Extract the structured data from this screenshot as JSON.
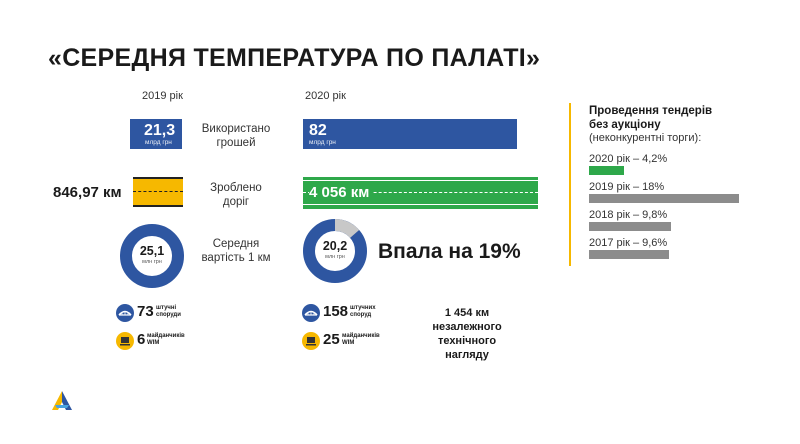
{
  "title": "«СЕРЕДНЯ ТЕМПЕРАТУРА ПО ПАЛАТІ»",
  "years": {
    "left": "2019 рік",
    "right": "2020 рік"
  },
  "money": {
    "label_line1": "Використано",
    "label_line2": "грошей",
    "left_value": "21,3",
    "left_unit": "млрд грн",
    "right_value": "82",
    "right_unit": "млрд грн"
  },
  "roads": {
    "label_line1": "Зроблено",
    "label_line2": "доріг",
    "left_value": "846,97 км",
    "right_value": "4 056 км"
  },
  "cost": {
    "label_line1": "Середня",
    "label_line2": "вартість 1 км",
    "left_value": "25,1",
    "left_unit": "млн грн",
    "right_value": "20,2",
    "right_unit": "млн грн",
    "drop_text": "Впала на 19%"
  },
  "structures": {
    "left_count": "73",
    "right_count": "158",
    "unit_line1": "штучні",
    "unit_line2": "споруди",
    "right_unit_line1": "штучних",
    "right_unit_line2": "споруд"
  },
  "wim": {
    "left_count": "6",
    "right_count": "25",
    "unit_line1": "майданчиків",
    "unit_line2": "WIM"
  },
  "supervision": {
    "line1": "1 454 км",
    "line2": "незалежного",
    "line3": "технічного",
    "line4": "нагляду"
  },
  "legend": {
    "title_line1": "Проведення тендерів",
    "title_line2": "без аукціону",
    "subtitle": "(неконкурентні торги):",
    "items": [
      {
        "label": "2020 рік – 4,2%",
        "value": 4.2,
        "color": "#2ea84a"
      },
      {
        "label": "2019 рік – 18%",
        "value": 18,
        "color": "#8c8c8c"
      },
      {
        "label": "2018 рік – 9,8%",
        "value": 9.8,
        "color": "#8c8c8c"
      },
      {
        "label": "2017 рік – 9,6%",
        "value": 9.6,
        "color": "#8c8c8c"
      }
    ]
  },
  "colors": {
    "blue": "#2e56a1",
    "green": "#2ea84a",
    "yellow": "#f6b800",
    "gray": "#8c8c8c",
    "light_gray": "#c8c8c8"
  },
  "icons": [
    "bridge-icon",
    "truck-scale-icon",
    "logo-icon"
  ]
}
